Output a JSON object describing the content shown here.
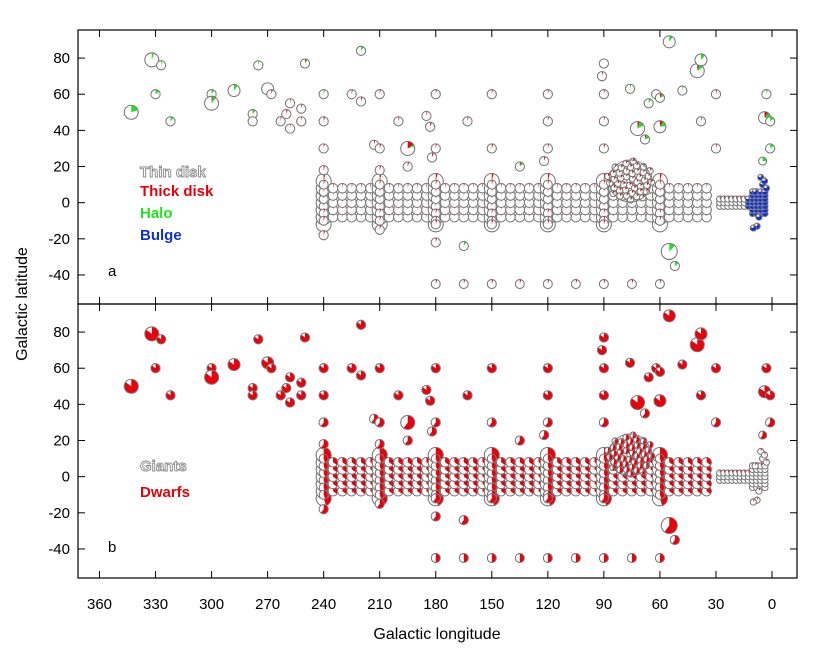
{
  "chart_data": [
    {
      "panel": "a",
      "type": "scatter",
      "marker": "pie",
      "xlabel": "Galactic longitude",
      "ylabel": "Galactic latitude",
      "xlim": [
        360,
        0
      ],
      "ylim": [
        -50,
        90
      ],
      "xticks": [
        360,
        330,
        300,
        270,
        240,
        210,
        180,
        150,
        120,
        90,
        60,
        30,
        0
      ],
      "yticks": [
        -40,
        -20,
        0,
        20,
        40,
        60,
        80
      ],
      "legend": [
        {
          "label": "Thin disk",
          "color": "#9a9a9a"
        },
        {
          "label": "Thick disk",
          "color": "#e8000b"
        },
        {
          "label": "Halo",
          "color": "#20e020"
        },
        {
          "label": "Bulge",
          "color": "#1030d0"
        }
      ],
      "components": [
        "Thin disk",
        "Thick disk",
        "Halo",
        "Bulge"
      ],
      "high_lat_fields": [
        [
          343,
          50,
          0,
          0,
          0.2,
          0
        ],
        [
          332,
          79,
          0,
          0,
          0.05,
          0
        ],
        [
          327,
          76,
          0,
          0,
          0.05,
          0
        ],
        [
          322,
          45,
          0,
          0,
          0.12,
          0
        ],
        [
          330,
          60,
          0,
          0,
          0.15,
          0
        ],
        [
          300,
          60,
          0,
          0,
          0.1,
          0
        ],
        [
          300,
          55,
          0,
          0.03,
          0.08,
          0
        ],
        [
          288,
          62,
          0,
          0,
          0.1,
          0
        ],
        [
          278,
          49,
          0,
          0.03,
          0.08,
          0
        ],
        [
          278,
          45,
          0,
          0,
          0,
          0
        ],
        [
          275,
          76,
          0,
          0,
          0.05,
          0
        ],
        [
          270,
          63,
          0,
          0,
          0,
          0
        ],
        [
          268,
          60,
          0,
          0.05,
          0,
          0
        ],
        [
          263,
          45,
          0,
          0.03,
          0,
          0
        ],
        [
          260,
          49,
          0,
          0.05,
          0,
          0
        ],
        [
          258,
          55,
          0,
          0.03,
          0,
          0
        ],
        [
          258,
          41,
          0,
          0.02,
          0,
          0
        ],
        [
          252,
          52,
          0,
          0.04,
          0,
          0
        ],
        [
          252,
          45,
          0,
          0.03,
          0,
          0
        ],
        [
          250,
          77,
          0,
          0.05,
          0.05,
          0
        ],
        [
          240,
          60,
          0,
          0,
          0.05,
          0
        ],
        [
          240,
          45,
          0,
          0.05,
          0,
          0
        ],
        [
          240,
          30,
          0,
          0.04,
          0,
          0
        ],
        [
          240,
          18,
          0,
          0.05,
          0,
          0
        ],
        [
          240,
          -18,
          0,
          0.05,
          0,
          0
        ],
        [
          220,
          84,
          0,
          0,
          0.1,
          0
        ],
        [
          225,
          60,
          0,
          0.04,
          0,
          0
        ],
        [
          220,
          56,
          0,
          0.05,
          0,
          0
        ],
        [
          210,
          60,
          0,
          0.04,
          0,
          0
        ],
        [
          213,
          32,
          0,
          0.04,
          0,
          0
        ],
        [
          210,
          30,
          0,
          0.05,
          0,
          0
        ],
        [
          210,
          18,
          0,
          0.05,
          0,
          0
        ],
        [
          210,
          -15,
          0,
          0.05,
          0,
          0
        ],
        [
          200,
          45,
          0,
          0.04,
          0,
          0
        ],
        [
          195,
          30,
          0,
          0.15,
          0.05,
          0
        ],
        [
          195,
          20,
          0,
          0.05,
          0,
          0
        ],
        [
          185,
          48,
          0,
          0.04,
          0,
          0
        ],
        [
          183,
          42,
          0,
          0.06,
          0,
          0
        ],
        [
          180,
          60,
          0,
          0.04,
          0,
          0
        ],
        [
          182,
          25,
          0,
          0.05,
          0,
          0
        ],
        [
          180,
          30,
          0,
          0.04,
          0,
          0
        ],
        [
          180,
          -12,
          0,
          0.05,
          0,
          0
        ],
        [
          180,
          -22,
          0,
          0.05,
          0,
          0
        ],
        [
          165,
          -24,
          0,
          0,
          0.1,
          0
        ],
        [
          163,
          45,
          0,
          0.04,
          0,
          0
        ],
        [
          150,
          60,
          0,
          0.04,
          0,
          0
        ],
        [
          150,
          30,
          0,
          0.05,
          0,
          0
        ],
        [
          150,
          -12,
          0,
          0.05,
          0,
          0
        ],
        [
          135,
          20,
          0,
          0.05,
          0.1,
          0
        ],
        [
          122,
          23,
          0,
          0.05,
          0,
          0
        ],
        [
          120,
          60,
          0,
          0.04,
          0,
          0
        ],
        [
          120,
          45,
          0,
          0.04,
          0,
          0
        ],
        [
          120,
          30,
          0,
          0.04,
          0,
          0
        ],
        [
          120,
          -12,
          0,
          0.05,
          0,
          0
        ],
        [
          90,
          77,
          0,
          0,
          0,
          0
        ],
        [
          91,
          70,
          0,
          0.04,
          0,
          0
        ],
        [
          90,
          60,
          0,
          0.04,
          0,
          0
        ],
        [
          90,
          45,
          0,
          0.04,
          0,
          0
        ],
        [
          90,
          30,
          0,
          0.05,
          0,
          0
        ],
        [
          90,
          -12,
          0,
          0.05,
          0,
          0
        ],
        [
          76,
          63,
          0,
          0,
          0.05,
          0
        ],
        [
          72,
          41,
          0,
          0.05,
          0.12,
          0
        ],
        [
          68,
          35,
          0,
          0.05,
          0.15,
          0
        ],
        [
          66,
          55,
          0,
          0,
          0.1,
          0
        ],
        [
          62,
          60,
          0,
          0,
          0,
          0
        ],
        [
          60,
          42,
          0,
          0.08,
          0.15,
          0
        ],
        [
          60,
          58,
          0,
          0.08,
          0.1,
          0
        ],
        [
          55,
          89,
          0,
          0,
          0.1,
          0
        ],
        [
          55,
          -27,
          0,
          0,
          0.12,
          0
        ],
        [
          52,
          -35,
          0,
          0,
          0.15,
          0
        ],
        [
          48,
          62,
          0,
          0,
          0.05,
          0
        ],
        [
          40,
          73,
          0,
          0.06,
          0.1,
          0
        ],
        [
          38,
          79,
          0,
          0,
          0.12,
          0
        ],
        [
          38,
          45,
          0,
          0,
          0.05,
          0
        ],
        [
          30,
          60,
          0,
          0.04,
          0,
          0
        ],
        [
          30,
          30,
          0,
          0.04,
          0,
          0
        ],
        [
          3,
          60,
          0,
          0,
          0.05,
          0
        ],
        [
          4,
          47,
          0,
          0.1,
          0.15,
          0
        ],
        [
          1,
          45,
          0,
          0,
          0.15,
          0
        ],
        [
          5,
          23,
          0,
          0,
          0.25,
          0
        ],
        [
          1,
          30,
          0,
          0,
          0.15,
          0
        ],
        [
          180,
          -45,
          0,
          0.05,
          0,
          0
        ],
        [
          165,
          -45,
          0,
          0.05,
          0,
          0
        ],
        [
          150,
          -45,
          0,
          0.05,
          0,
          0
        ],
        [
          135,
          -45,
          0,
          0.05,
          0,
          0
        ],
        [
          120,
          -45,
          0,
          0.05,
          0,
          0
        ],
        [
          105,
          -45,
          0,
          0.05,
          0,
          0
        ],
        [
          90,
          -45,
          0,
          0.05,
          0,
          0
        ],
        [
          75,
          -45,
          0,
          0.05,
          0,
          0
        ],
        [
          60,
          -45,
          0,
          0.05,
          0,
          0
        ]
      ]
    },
    {
      "panel": "b",
      "type": "scatter",
      "marker": "pie",
      "xlabel": "Galactic longitude",
      "ylabel": "Galactic latitude",
      "xlim": [
        360,
        0
      ],
      "ylim": [
        -50,
        90
      ],
      "xticks": [
        360,
        330,
        300,
        270,
        240,
        210,
        180,
        150,
        120,
        90,
        60,
        30,
        0
      ],
      "yticks": [
        -40,
        -20,
        0,
        20,
        40,
        60,
        80
      ],
      "legend": [
        {
          "label": "Giants",
          "color": "#9a9a9a"
        },
        {
          "label": "Dwarfs",
          "color": "#e8000b"
        }
      ],
      "components": [
        "Giants",
        "Dwarfs"
      ]
    }
  ],
  "plot": {
    "xlabel": "Galactic longitude",
    "ylabel": "Galactic latitude",
    "panel_a_label": "a",
    "panel_b_label": "b",
    "outline_color": "#7a7a7a"
  },
  "colors": {
    "thin_disk": "#9a9a9a",
    "thick_disk": "#e8000b",
    "halo": "#20e020",
    "bulge": "#1030d0",
    "giants": "#9a9a9a",
    "dwarfs": "#e8000b"
  }
}
